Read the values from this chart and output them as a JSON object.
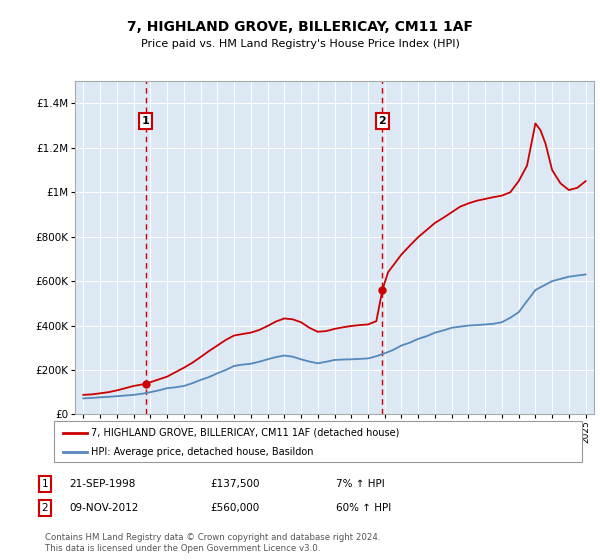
{
  "title": "7, HIGHLAND GROVE, BILLERICAY, CM11 1AF",
  "subtitle": "Price paid vs. HM Land Registry's House Price Index (HPI)",
  "legend_line1": "7, HIGHLAND GROVE, BILLERICAY, CM11 1AF (detached house)",
  "legend_line2": "HPI: Average price, detached house, Basildon",
  "sale1_date": "21-SEP-1998",
  "sale1_price": "£137,500",
  "sale1_hpi": "7% ↑ HPI",
  "sale1_year": 1998.72,
  "sale1_price_val": 137500,
  "sale2_date": "09-NOV-2012",
  "sale2_price": "£560,000",
  "sale2_hpi": "60% ↑ HPI",
  "sale2_year": 2012.86,
  "sale2_price_val": 560000,
  "footnote": "Contains HM Land Registry data © Crown copyright and database right 2024.\nThis data is licensed under the Open Government Licence v3.0.",
  "line_color_red": "#cc0000",
  "line_color_blue": "#5588bb",
  "background_color": "#dde8f5",
  "ylim": [
    0,
    1500000
  ],
  "yticks": [
    0,
    200000,
    400000,
    600000,
    800000,
    1000000,
    1200000,
    1400000
  ],
  "ytick_labels": [
    "£0",
    "£200K",
    "£400K",
    "£600K",
    "£800K",
    "£1M",
    "£1.2M",
    "£1.4M"
  ],
  "xlim_start": 1994.5,
  "xlim_end": 2025.5,
  "hpi_years": [
    1995.0,
    1995.5,
    1996.0,
    1996.5,
    1997.0,
    1997.5,
    1998.0,
    1998.5,
    1999.0,
    1999.5,
    2000.0,
    2000.5,
    2001.0,
    2001.5,
    2002.0,
    2002.5,
    2003.0,
    2003.5,
    2004.0,
    2004.5,
    2005.0,
    2005.5,
    2006.0,
    2006.5,
    2007.0,
    2007.5,
    2008.0,
    2008.5,
    2009.0,
    2009.5,
    2010.0,
    2010.5,
    2011.0,
    2011.5,
    2012.0,
    2012.5,
    2013.0,
    2013.5,
    2014.0,
    2014.5,
    2015.0,
    2015.5,
    2016.0,
    2016.5,
    2017.0,
    2017.5,
    2018.0,
    2018.5,
    2019.0,
    2019.5,
    2020.0,
    2020.5,
    2021.0,
    2021.5,
    2022.0,
    2022.5,
    2023.0,
    2023.5,
    2024.0,
    2024.5,
    2025.0
  ],
  "hpi_values": [
    72000,
    74000,
    77000,
    79000,
    82000,
    85000,
    88000,
    93000,
    100000,
    108000,
    118000,
    122000,
    128000,
    140000,
    155000,
    168000,
    185000,
    200000,
    218000,
    224000,
    228000,
    237000,
    248000,
    258000,
    265000,
    260000,
    248000,
    238000,
    230000,
    237000,
    245000,
    247000,
    248000,
    250000,
    252000,
    262000,
    275000,
    290000,
    310000,
    323000,
    340000,
    352000,
    368000,
    378000,
    390000,
    395000,
    400000,
    402000,
    405000,
    408000,
    415000,
    435000,
    460000,
    510000,
    560000,
    580000,
    600000,
    610000,
    620000,
    625000,
    630000
  ],
  "prop_years": [
    1995.0,
    1995.5,
    1996.0,
    1996.5,
    1997.0,
    1997.5,
    1998.0,
    1998.72,
    1999.2,
    2000.0,
    2000.5,
    2001.0,
    2001.5,
    2002.0,
    2002.5,
    2003.0,
    2003.5,
    2004.0,
    2004.5,
    2005.0,
    2005.5,
    2006.0,
    2006.5,
    2007.0,
    2007.5,
    2008.0,
    2008.5,
    2009.0,
    2009.5,
    2010.0,
    2010.5,
    2011.0,
    2011.5,
    2012.0,
    2012.5,
    2012.86,
    2013.2,
    2014.0,
    2014.5,
    2015.0,
    2015.5,
    2016.0,
    2016.5,
    2017.0,
    2017.5,
    2018.0,
    2018.5,
    2019.0,
    2019.5,
    2020.0,
    2020.5,
    2021.0,
    2021.5,
    2022.0,
    2022.3,
    2022.6,
    2023.0,
    2023.5,
    2024.0,
    2024.5,
    2025.0
  ],
  "prop_values": [
    88000,
    90000,
    95000,
    100000,
    108000,
    118000,
    128000,
    137500,
    150000,
    170000,
    190000,
    210000,
    232000,
    258000,
    285000,
    310000,
    335000,
    355000,
    362000,
    368000,
    380000,
    398000,
    418000,
    432000,
    428000,
    415000,
    390000,
    372000,
    375000,
    385000,
    392000,
    398000,
    402000,
    405000,
    420000,
    560000,
    640000,
    720000,
    760000,
    798000,
    830000,
    862000,
    885000,
    910000,
    935000,
    950000,
    962000,
    970000,
    978000,
    985000,
    1000000,
    1050000,
    1120000,
    1310000,
    1280000,
    1220000,
    1100000,
    1040000,
    1010000,
    1020000,
    1050000
  ]
}
